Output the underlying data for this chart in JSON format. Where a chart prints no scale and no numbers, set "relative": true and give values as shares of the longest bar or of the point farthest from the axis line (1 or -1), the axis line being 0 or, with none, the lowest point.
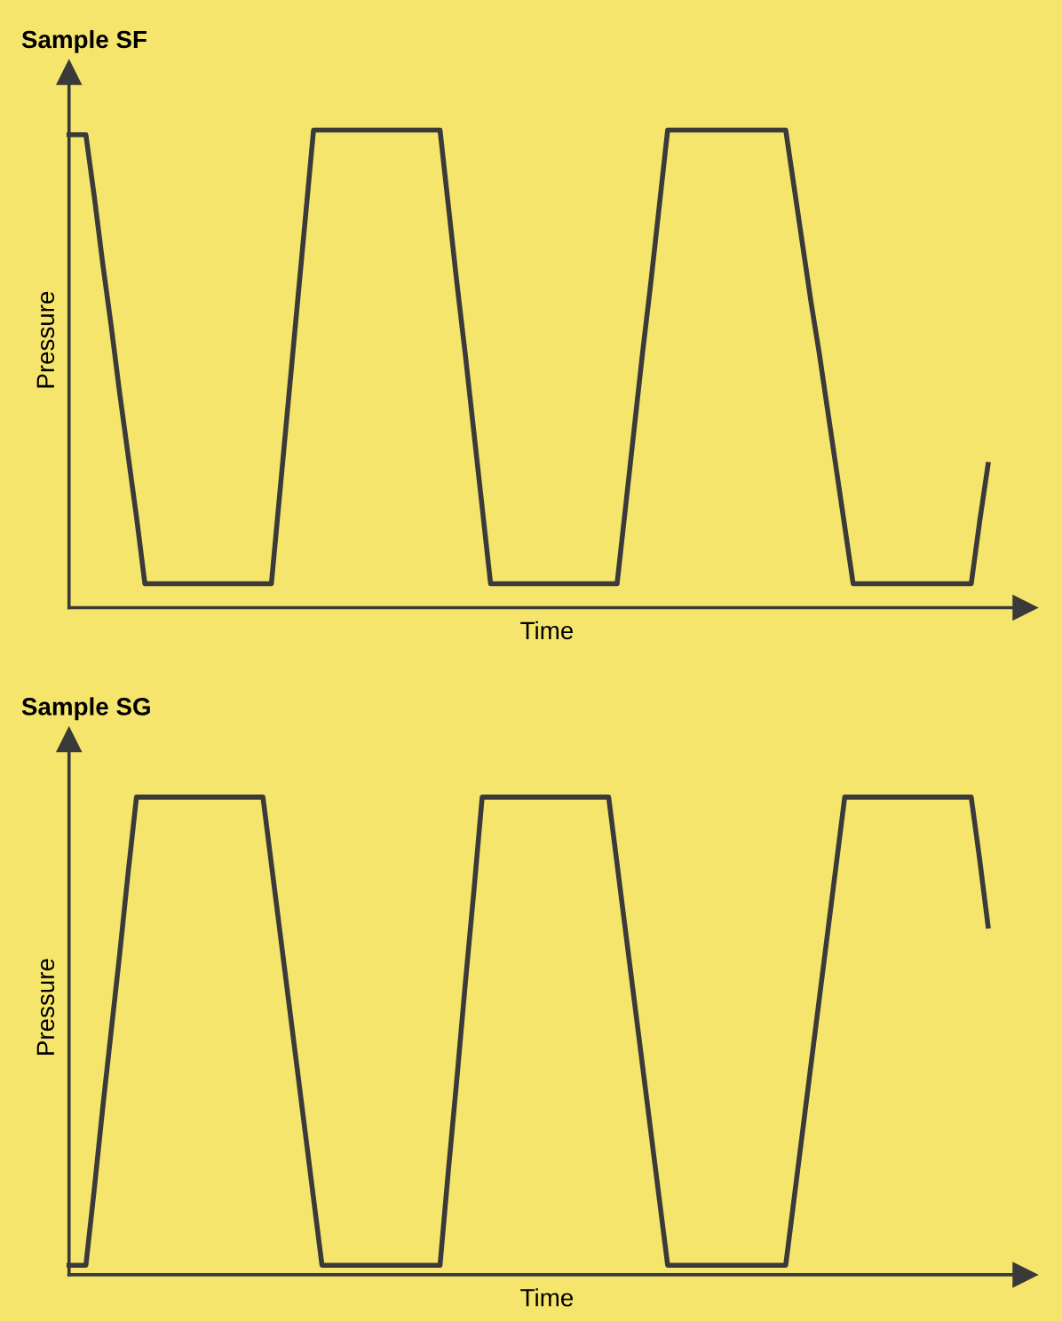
{
  "chart_data": [
    {
      "type": "line",
      "title": "Sample SF",
      "xlabel": "Time",
      "ylabel": "Pressure",
      "relative": true,
      "legend": false,
      "marker": "none",
      "line_style": "solid",
      "categories": [
        null,
        null,
        null,
        null,
        null,
        null,
        null,
        null,
        null,
        null,
        null,
        null,
        null,
        null,
        null,
        null,
        null,
        null,
        null,
        null,
        null,
        null,
        null,
        null,
        null,
        null,
        null,
        null,
        null,
        null,
        null,
        null,
        null,
        null,
        null,
        null,
        null,
        null,
        null,
        null,
        null,
        null,
        null,
        null,
        null,
        null,
        null,
        null,
        null,
        null,
        null,
        null,
        null,
        null,
        null,
        null,
        null,
        null,
        null,
        null,
        null,
        null,
        null,
        null,
        null,
        null,
        null,
        null,
        null,
        null,
        null,
        null,
        null,
        null,
        null,
        null,
        null,
        null,
        null,
        null,
        null,
        null,
        null,
        null,
        null,
        null,
        null,
        null,
        null,
        null,
        null,
        null,
        null,
        null,
        null,
        null,
        null,
        null,
        null,
        null,
        null,
        null,
        null,
        null,
        null,
        null,
        null,
        null,
        null,
        null
      ],
      "series": [
        {
          "color": "#3a3a3a",
          "values": [
            0.99,
            0.99,
            0.99,
            0.86,
            0.72,
            0.59,
            0.45,
            0.32,
            0.19,
            0.05,
            0.05,
            0.05,
            0.05,
            0.05,
            0.05,
            0.05,
            0.05,
            0.05,
            0.05,
            0.05,
            0.05,
            0.05,
            0.05,
            0.05,
            0.05,
            0.24,
            0.43,
            0.62,
            0.81,
            1,
            1,
            1,
            1,
            1,
            1,
            1,
            1,
            1,
            1,
            1,
            1,
            1,
            1,
            1,
            1,
            0.84,
            0.68,
            0.53,
            0.37,
            0.21,
            0.05,
            0.05,
            0.05,
            0.05,
            0.05,
            0.05,
            0.05,
            0.05,
            0.05,
            0.05,
            0.05,
            0.05,
            0.05,
            0.05,
            0.05,
            0.05,
            0.21,
            0.37,
            0.53,
            0.68,
            0.84,
            1,
            1,
            1,
            1,
            1,
            1,
            1,
            1,
            1,
            1,
            1,
            1,
            1,
            1,
            1,
            0.88,
            0.76,
            0.64,
            0.53,
            0.41,
            0.29,
            0.17,
            0.05,
            0.05,
            0.05,
            0.05,
            0.05,
            0.05,
            0.05,
            0.05,
            0.05,
            0.05,
            0.05,
            0.05,
            0.05,
            0.05,
            0.05,
            0.18,
            0.3
          ]
        }
      ]
    },
    {
      "type": "line",
      "title": "Sample SG",
      "xlabel": "Time",
      "ylabel": "Pressure",
      "relative": true,
      "legend": false,
      "marker": "none",
      "line_style": "solid",
      "categories": [
        null,
        null,
        null,
        null,
        null,
        null,
        null,
        null,
        null,
        null,
        null,
        null,
        null,
        null,
        null,
        null,
        null,
        null,
        null,
        null,
        null,
        null,
        null,
        null,
        null,
        null,
        null,
        null,
        null,
        null,
        null,
        null,
        null,
        null,
        null,
        null,
        null,
        null,
        null,
        null,
        null,
        null,
        null,
        null,
        null,
        null,
        null,
        null,
        null,
        null,
        null,
        null,
        null,
        null,
        null,
        null,
        null,
        null,
        null,
        null,
        null,
        null,
        null,
        null,
        null,
        null,
        null,
        null,
        null,
        null,
        null,
        null,
        null,
        null,
        null,
        null,
        null,
        null,
        null,
        null,
        null,
        null,
        null,
        null,
        null,
        null,
        null,
        null,
        null,
        null,
        null,
        null,
        null,
        null,
        null,
        null,
        null,
        null,
        null,
        null,
        null,
        null,
        null,
        null,
        null,
        null,
        null,
        null,
        null,
        null
      ],
      "series": [
        {
          "color": "#3a3a3a",
          "values": [
            0.02,
            0.02,
            0.02,
            0.18,
            0.35,
            0.51,
            0.67,
            0.84,
            1,
            1,
            1,
            1,
            1,
            1,
            1,
            1,
            1,
            1,
            1,
            1,
            1,
            1,
            1,
            1,
            0.86,
            0.72,
            0.58,
            0.44,
            0.3,
            0.16,
            0.02,
            0.02,
            0.02,
            0.02,
            0.02,
            0.02,
            0.02,
            0.02,
            0.02,
            0.02,
            0.02,
            0.02,
            0.02,
            0.02,
            0.02,
            0.22,
            0.41,
            0.61,
            0.8,
            1,
            1,
            1,
            1,
            1,
            1,
            1,
            1,
            1,
            1,
            1,
            1,
            1,
            1,
            1,
            1,
            0.86,
            0.72,
            0.58,
            0.44,
            0.3,
            0.16,
            0.02,
            0.02,
            0.02,
            0.02,
            0.02,
            0.02,
            0.02,
            0.02,
            0.02,
            0.02,
            0.02,
            0.02,
            0.02,
            0.02,
            0.02,
            0.16,
            0.3,
            0.44,
            0.58,
            0.72,
            0.86,
            1,
            1,
            1,
            1,
            1,
            1,
            1,
            1,
            1,
            1,
            1,
            1,
            1,
            1,
            1,
            1,
            0.87,
            0.73
          ]
        }
      ]
    }
  ]
}
